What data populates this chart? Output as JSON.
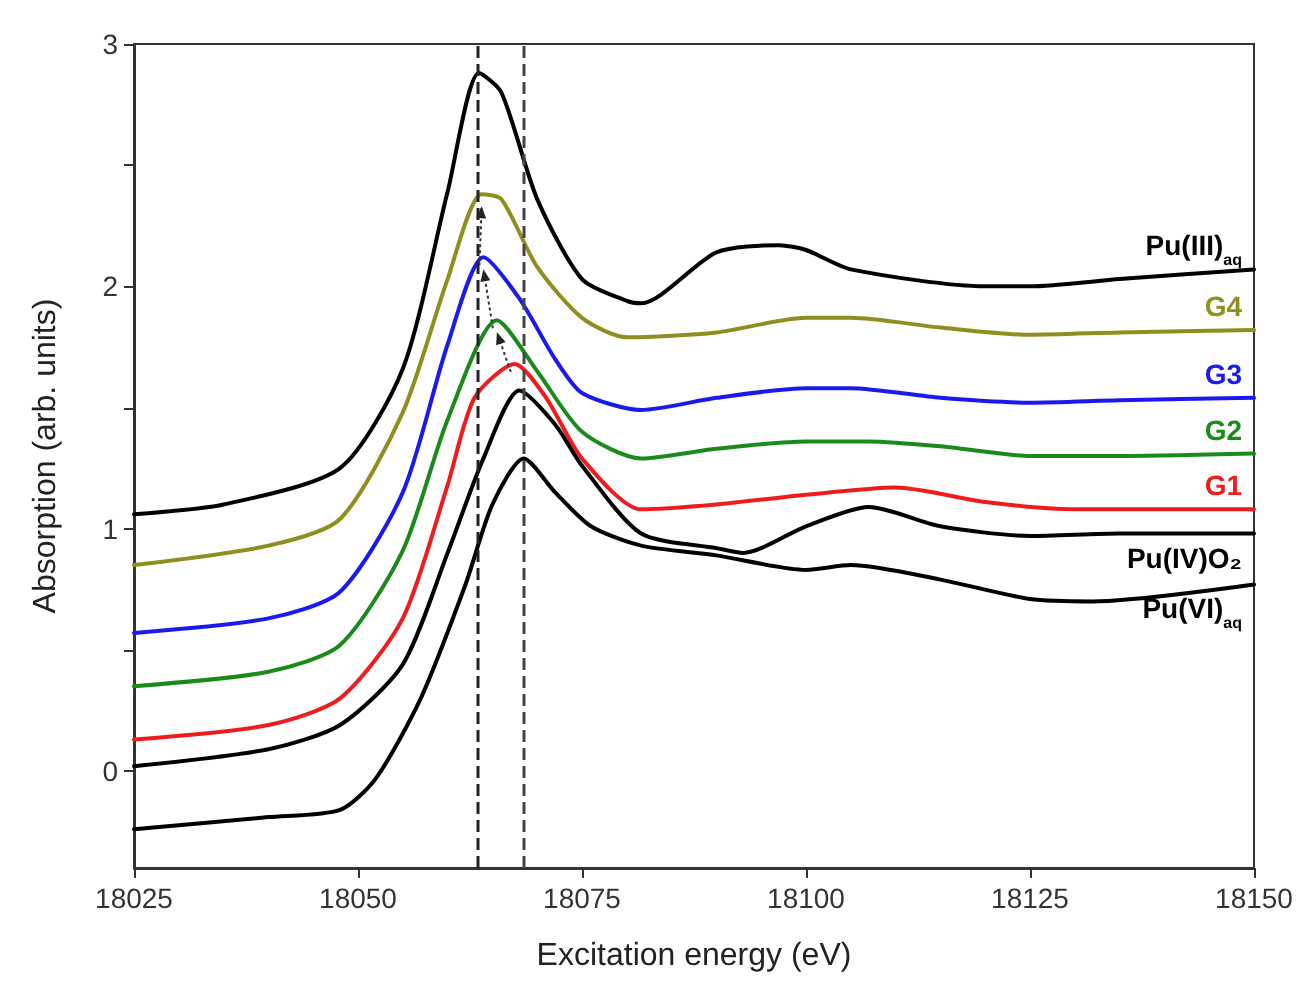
{
  "chart_data": {
    "type": "line",
    "xlabel": "Excitation energy (eV)",
    "ylabel": "Absorption (arb. units)",
    "xlim": [
      18025,
      18150
    ],
    "xticks": [
      18025,
      18050,
      18075,
      18100,
      18125,
      18150
    ],
    "ylim": [
      -0.4,
      3
    ],
    "yticks": [
      0,
      {
        "value": 0.5,
        "label": null
      },
      1,
      {
        "value": 1.5,
        "label": null
      },
      2,
      {
        "value": 2.5,
        "label": null
      },
      3
    ],
    "grid": false,
    "legend": false,
    "marker": "none",
    "line_style": "solid",
    "ref_lines": [
      {
        "axis": "x",
        "value": 18063.4,
        "label": null,
        "color": "#222222",
        "line_style": "dashed"
      },
      {
        "axis": "x",
        "value": 18068.5,
        "label": null,
        "color": "#444444",
        "line_style": "dashed"
      }
    ],
    "series": [
      {
        "name": "Pu(III)$_{aq}$",
        "color": "#000000",
        "x": [
          18025,
          18035,
          18048,
          18055,
          18060,
          18063.5,
          18066,
          18070,
          18075,
          18080,
          18081.6,
          18090,
          18097,
          18100,
          18105,
          18120,
          18125,
          18135,
          18150
        ],
        "values": [
          1.06,
          1.1,
          1.25,
          1.66,
          2.39,
          2.88,
          2.8,
          2.36,
          2.03,
          1.94,
          1.93,
          2.14,
          2.17,
          2.15,
          2.07,
          2.0,
          2.0,
          2.03,
          2.07
        ]
      },
      {
        "name": "G4",
        "color": "#8f8f1f",
        "x": [
          18025,
          18040,
          18048,
          18055,
          18060,
          18063.8,
          18066,
          18070,
          18075,
          18080,
          18090,
          18100,
          18105,
          18115,
          18125,
          18135,
          18150
        ],
        "values": [
          0.85,
          0.93,
          1.04,
          1.48,
          2.03,
          2.38,
          2.36,
          2.08,
          1.87,
          1.79,
          1.81,
          1.87,
          1.87,
          1.83,
          1.8,
          1.81,
          1.82
        ]
      },
      {
        "name": "G3",
        "color": "#1a1aee",
        "x": [
          18025,
          18040,
          18048,
          18055,
          18060,
          18064,
          18068,
          18072,
          18075,
          18081.6,
          18090,
          18100,
          18105,
          18115,
          18125,
          18135,
          18150
        ],
        "values": [
          0.57,
          0.63,
          0.74,
          1.15,
          1.76,
          2.12,
          1.95,
          1.7,
          1.56,
          1.49,
          1.54,
          1.58,
          1.58,
          1.54,
          1.52,
          1.53,
          1.54
        ]
      },
      {
        "name": "G2",
        "color": "#1a8a1a",
        "x": [
          18025,
          18040,
          18048,
          18055,
          18060,
          18065.5,
          18070,
          18075,
          18081.6,
          18090,
          18100,
          18107,
          18115,
          18125,
          18135,
          18150
        ],
        "values": [
          0.35,
          0.41,
          0.52,
          0.91,
          1.45,
          1.86,
          1.65,
          1.4,
          1.29,
          1.33,
          1.36,
          1.36,
          1.34,
          1.3,
          1.3,
          1.31
        ]
      },
      {
        "name": "G1",
        "color": "#ee1c1c",
        "x": [
          18025,
          18040,
          18048,
          18055,
          18060,
          18063,
          18067.5,
          18071,
          18075,
          18081.6,
          18090,
          18100,
          18110,
          18120,
          18130,
          18150
        ],
        "values": [
          0.13,
          0.19,
          0.3,
          0.63,
          1.18,
          1.54,
          1.68,
          1.54,
          1.29,
          1.08,
          1.1,
          1.14,
          1.17,
          1.11,
          1.08,
          1.08
        ]
      },
      {
        "name": "Pu(IV)O₂",
        "color": "#000000",
        "x": [
          18025,
          18040,
          18048,
          18055,
          18060,
          18064,
          18068,
          18072,
          18075,
          18081.6,
          18090,
          18093,
          18100,
          18107,
          18115,
          18125,
          18135,
          18150
        ],
        "values": [
          0.02,
          0.09,
          0.19,
          0.44,
          0.9,
          1.29,
          1.57,
          1.43,
          1.26,
          0.98,
          0.92,
          0.9,
          1.01,
          1.09,
          1.01,
          0.97,
          0.98,
          0.98
        ]
      },
      {
        "name": "Pu(VI)$_{aq}$",
        "color": "#000000",
        "x": [
          18025,
          18040,
          18048,
          18052,
          18057,
          18062,
          18065,
          18068.5,
          18072,
          18076,
          18081.6,
          18090,
          18100,
          18105,
          18115,
          18125,
          18132,
          18150
        ],
        "values": [
          -0.24,
          -0.19,
          -0.16,
          -0.03,
          0.3,
          0.77,
          1.1,
          1.29,
          1.15,
          1.01,
          0.93,
          0.89,
          0.83,
          0.85,
          0.79,
          0.71,
          0.7,
          0.77
        ]
      }
    ]
  }
}
